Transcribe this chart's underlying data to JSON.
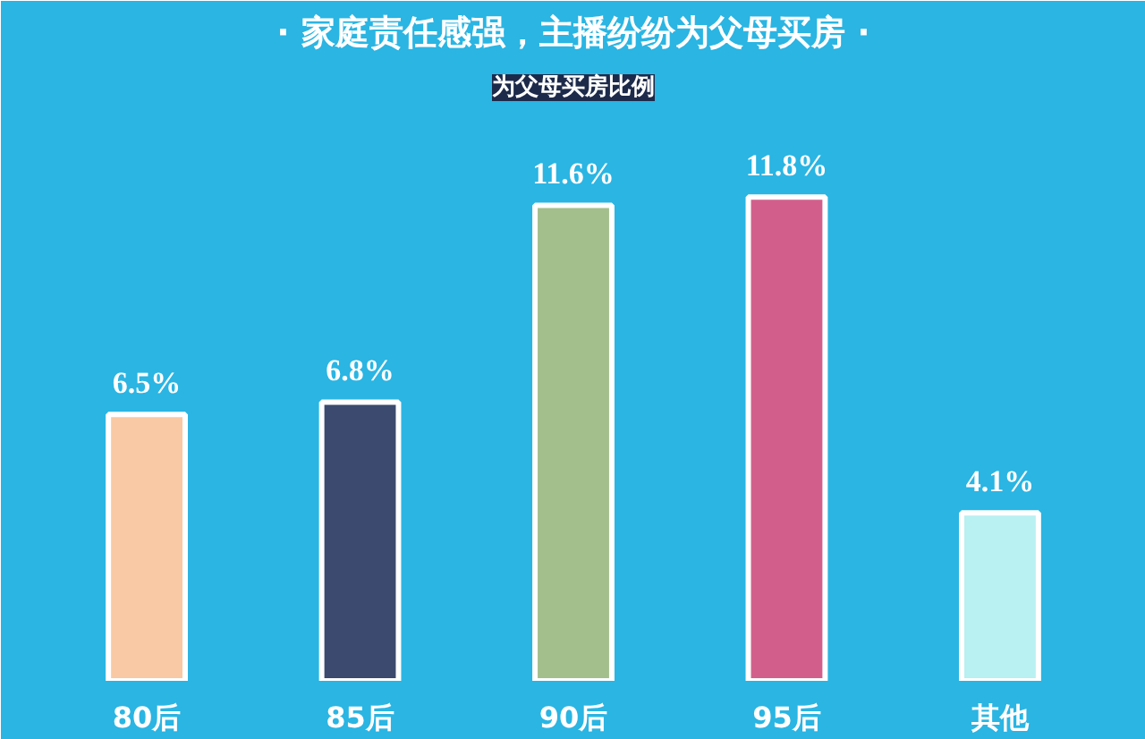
{
  "chart_data": {
    "type": "bar",
    "title": "· 家庭责任感强，主播纷纷为父母买房 ·",
    "subtitle": "为父母买房比例",
    "categories": [
      "80后",
      "85后",
      "90后",
      "95后",
      "其他"
    ],
    "values": [
      6.5,
      6.8,
      11.6,
      11.8,
      4.1
    ],
    "colors": [
      "#f8c9a4",
      "#3b4a6e",
      "#a3bf8c",
      "#d25f8b",
      "#b9f0f1"
    ],
    "value_labels": [
      "6.5%",
      "6.8%",
      "11.6%",
      "11.8%",
      "4.1%"
    ],
    "grid": false
  }
}
